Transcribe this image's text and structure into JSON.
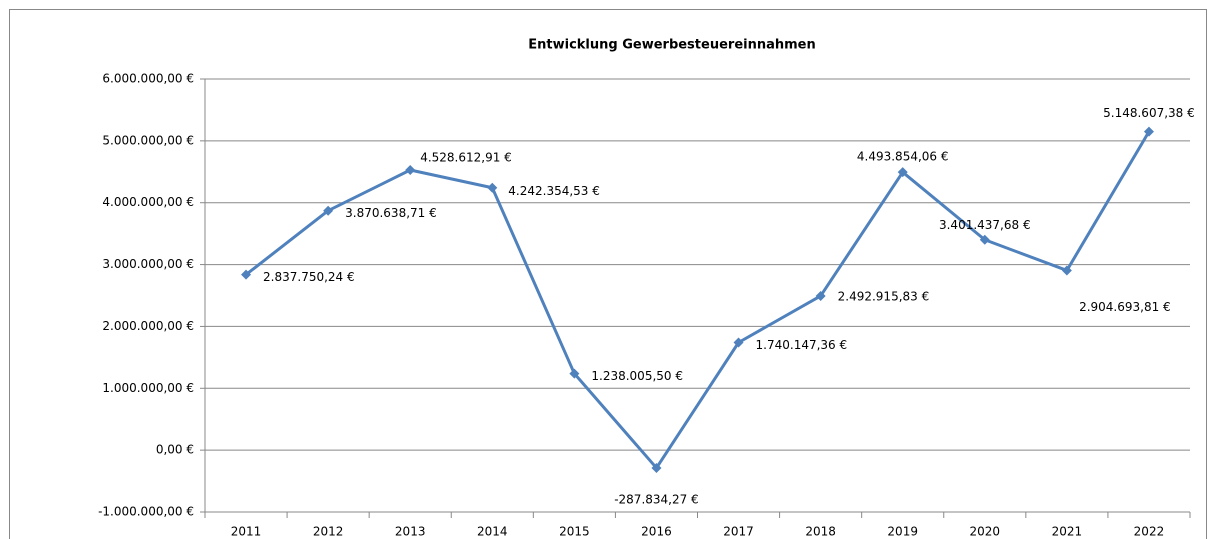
{
  "chart_data": {
    "type": "line",
    "title": "Entwicklung Gewerbesteuereinnahmen",
    "categories": [
      "2011",
      "2012",
      "2013",
      "2014",
      "2015",
      "2016",
      "2017",
      "2018",
      "2019",
      "2020",
      "2021",
      "2022"
    ],
    "series": [
      {
        "name": "Gewerbesteuereinnahmen",
        "color": "#4f81bd",
        "values": [
          2837750.24,
          3870638.71,
          4528612.91,
          4242354.53,
          1238005.5,
          -287834.27,
          1740147.36,
          2492915.83,
          4493854.06,
          3401437.68,
          2904693.81,
          5148607.38
        ],
        "value_labels": [
          "2.837.750,24 €",
          "3.870.638,71 €",
          "4.528.612,91 €",
          "4.242.354,53 €",
          "1.238.005,50 €",
          "-287.834,27 €",
          "1.740.147,36 €",
          "2.492.915,83 €",
          "4.493.854,06 €",
          "3.401.437,68 €",
          "2.904.693,81 €",
          "5.148.607,38 €"
        ]
      }
    ],
    "ylim": [
      -1000000,
      6000000
    ],
    "yticks": [
      {
        "value": -1000000,
        "label": "-1.000.000,00 €"
      },
      {
        "value": 0,
        "label": "0,00 €"
      },
      {
        "value": 1000000,
        "label": "1.000.000,00 €"
      },
      {
        "value": 2000000,
        "label": "2.000.000,00 €"
      },
      {
        "value": 3000000,
        "label": "3.000.000,00 €"
      },
      {
        "value": 4000000,
        "label": "4.000.000,00 €"
      },
      {
        "value": 5000000,
        "label": "5.000.000,00 €"
      },
      {
        "value": 6000000,
        "label": "6.000.000,00 €"
      }
    ],
    "grid": true
  }
}
